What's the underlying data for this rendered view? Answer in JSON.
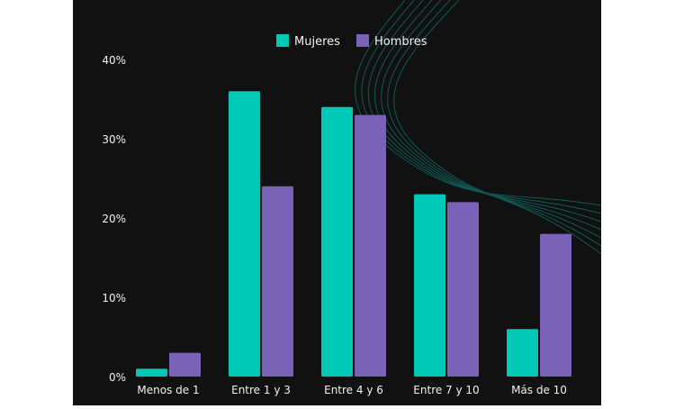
{
  "colors": {
    "background": "#111111",
    "mujeres": "#00c9b7",
    "hombres": "#7a62b8",
    "text": "#f2f2f2",
    "decor_lines": "#0e5a55"
  },
  "chart_data": {
    "type": "bar",
    "title": "",
    "xlabel": "",
    "ylabel": "",
    "categories": [
      "Menos de 1",
      "Entre 1 y 3",
      "Entre 4 y 6",
      "Entre 7 y 10",
      "Más de 10"
    ],
    "series": [
      {
        "name": "Mujeres",
        "values": [
          1,
          36,
          34,
          23,
          6
        ]
      },
      {
        "name": "Hombres",
        "values": [
          3,
          24,
          33,
          22,
          18
        ]
      }
    ],
    "ylim": [
      0,
      40
    ],
    "yticks": [
      "0%",
      "10%",
      "20%",
      "30%",
      "40%"
    ],
    "grid": false,
    "legend": "top-center"
  }
}
